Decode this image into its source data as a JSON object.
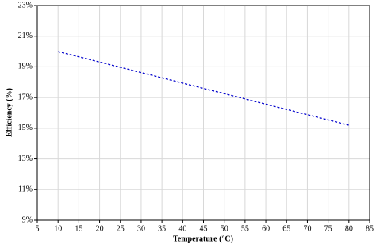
{
  "chart_data": {
    "type": "line",
    "x_label": "Temperature (°C)",
    "y_label": "Efficiency (%)",
    "x": [
      10,
      80
    ],
    "series": [
      {
        "name": "Efficiency",
        "color": "#0000cc",
        "values": [
          20.0,
          15.2
        ]
      }
    ],
    "xlim": [
      5,
      85
    ],
    "xticks": [
      5,
      10,
      15,
      20,
      25,
      30,
      35,
      40,
      45,
      50,
      55,
      60,
      65,
      70,
      75,
      80,
      85
    ],
    "ylim": [
      9,
      23
    ],
    "yticks": [
      {
        "value": 9,
        "label": "9%"
      },
      {
        "value": 11,
        "label": "11%"
      },
      {
        "value": 13,
        "label": "13%"
      },
      {
        "value": 15,
        "label": "15%"
      },
      {
        "value": 17,
        "label": "17%"
      },
      {
        "value": 19,
        "label": "19%"
      },
      {
        "value": 21,
        "label": "21%"
      },
      {
        "value": 23,
        "label": "23%"
      }
    ],
    "grid": true,
    "line_style": "dashed"
  }
}
